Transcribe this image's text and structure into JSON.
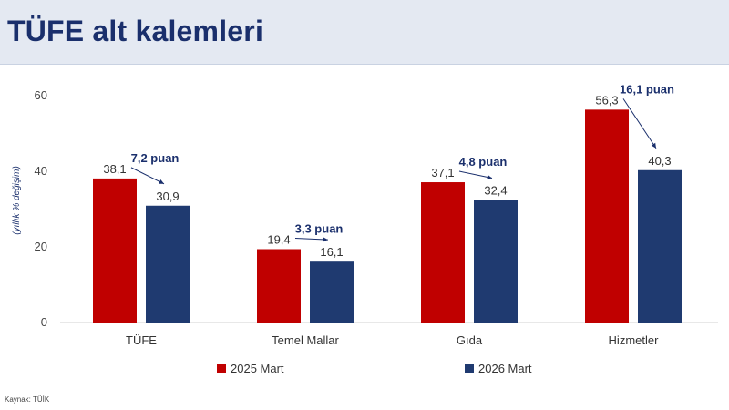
{
  "header": {
    "title": "TÜFE alt kalemleri"
  },
  "footer": {
    "source": "Kaynak: TÜİK"
  },
  "colors": {
    "series_2025": "#c00000",
    "series_2026": "#1f3a70",
    "header_bg": "#e4e9f2",
    "title": "#1a2f6c"
  },
  "chart_data": {
    "type": "bar",
    "title": "TÜFE alt kalemleri",
    "ylabel": "(yıllık % değişim)",
    "ylim": [
      0,
      60
    ],
    "yticks": [
      0,
      20,
      40,
      60
    ],
    "categories": [
      "TÜFE",
      "Temel Mallar",
      "Gıda",
      "Hizmetler"
    ],
    "series": [
      {
        "name": "2025 Mart",
        "values": [
          38.1,
          19.4,
          37.1,
          56.3
        ],
        "labels": [
          "38,1",
          "19,4",
          "37,1",
          "56,3"
        ],
        "color": "#c00000"
      },
      {
        "name": "2026 Mart",
        "values": [
          30.9,
          16.1,
          32.4,
          40.3
        ],
        "labels": [
          "30,9",
          "16,1",
          "32,4",
          "40,3"
        ],
        "color": "#1f3a70"
      }
    ],
    "annotations": [
      "7,2 puan",
      "3,3 puan",
      "4,8 puan",
      "16,1 puan"
    ],
    "legend": "bottom",
    "grid": false
  }
}
